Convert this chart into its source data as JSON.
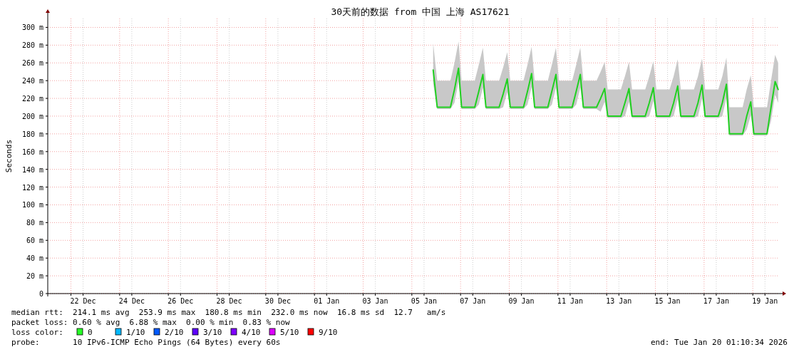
{
  "chart_data": {
    "type": "line",
    "title": "30天前的数据 from 中国 上海 AS17621",
    "ylabel": "Seconds",
    "xlim": [
      "2025-12-21T01:10",
      "2026-01-20T01:10"
    ],
    "xticks": [
      {
        "value": "2025-12-22T00:00",
        "label": null
      },
      {
        "value": "2025-12-22T12:00",
        "label": "22 Dec"
      },
      {
        "value": "2025-12-24T00:00",
        "label": null
      },
      {
        "value": "2025-12-24T12:00",
        "label": "24 Dec"
      },
      {
        "value": "2025-12-26T00:00",
        "label": null
      },
      {
        "value": "2025-12-26T12:00",
        "label": "26 Dec"
      },
      {
        "value": "2025-12-28T00:00",
        "label": null
      },
      {
        "value": "2025-12-28T12:00",
        "label": "28 Dec"
      },
      {
        "value": "2025-12-30T00:00",
        "label": null
      },
      {
        "value": "2025-12-30T12:00",
        "label": "30 Dec"
      },
      {
        "value": "2026-01-01T00:00",
        "label": null
      },
      {
        "value": "2026-01-01T12:00",
        "label": "01 Jan"
      },
      {
        "value": "2026-01-03T00:00",
        "label": null
      },
      {
        "value": "2026-01-03T12:00",
        "label": "03 Jan"
      },
      {
        "value": "2026-01-05T00:00",
        "label": null
      },
      {
        "value": "2026-01-05T12:00",
        "label": "05 Jan"
      },
      {
        "value": "2026-01-07T00:00",
        "label": null
      },
      {
        "value": "2026-01-07T12:00",
        "label": "07 Jan"
      },
      {
        "value": "2026-01-09T00:00",
        "label": null
      },
      {
        "value": "2026-01-09T12:00",
        "label": "09 Jan"
      },
      {
        "value": "2026-01-11T00:00",
        "label": null
      },
      {
        "value": "2026-01-11T12:00",
        "label": "11 Jan"
      },
      {
        "value": "2026-01-13T00:00",
        "label": null
      },
      {
        "value": "2026-01-13T12:00",
        "label": "13 Jan"
      },
      {
        "value": "2026-01-15T00:00",
        "label": null
      },
      {
        "value": "2026-01-15T12:00",
        "label": "15 Jan"
      },
      {
        "value": "2026-01-17T00:00",
        "label": null
      },
      {
        "value": "2026-01-17T12:00",
        "label": "17 Jan"
      },
      {
        "value": "2026-01-19T00:00",
        "label": null
      },
      {
        "value": "2026-01-19T12:00",
        "label": "19 Jan"
      }
    ],
    "ylim": [
      0,
      310
    ],
    "yticks": [
      0,
      {
        "value": 20,
        "label": "20 m"
      },
      {
        "value": 40,
        "label": "40 m"
      },
      {
        "value": 60,
        "label": "60 m"
      },
      {
        "value": 80,
        "label": "80 m"
      },
      {
        "value": 100,
        "label": "100 m"
      },
      {
        "value": 120,
        "label": "120 m"
      },
      {
        "value": 140,
        "label": "140 m"
      },
      {
        "value": 160,
        "label": "160 m"
      },
      {
        "value": 180,
        "label": "180 m"
      },
      {
        "value": 200,
        "label": "200 m"
      },
      {
        "value": 220,
        "label": "220 m"
      },
      {
        "value": 240,
        "label": "240 m"
      },
      {
        "value": 260,
        "label": "260 m"
      },
      {
        "value": 280,
        "label": "280 m"
      },
      {
        "value": 300,
        "label": "300 m"
      }
    ],
    "grid": true,
    "marker": "none",
    "line_style": "solid",
    "x": [
      "2026-01-05T21:00",
      "2026-01-06T01:00",
      "2026-01-06T14:00",
      "2026-01-06T18:00",
      "2026-01-06T22:00",
      "2026-01-07T01:00",
      "2026-01-07T14:00",
      "2026-01-07T18:00",
      "2026-01-07T22:00",
      "2026-01-08T01:00",
      "2026-01-08T14:00",
      "2026-01-08T18:00",
      "2026-01-08T22:00",
      "2026-01-09T01:00",
      "2026-01-09T14:00",
      "2026-01-09T18:00",
      "2026-01-09T22:00",
      "2026-01-10T01:00",
      "2026-01-10T14:00",
      "2026-01-10T18:00",
      "2026-01-10T22:00",
      "2026-01-11T01:00",
      "2026-01-11T14:00",
      "2026-01-11T18:00",
      "2026-01-11T22:00",
      "2026-01-12T01:00",
      "2026-01-12T14:00",
      "2026-01-12T18:00",
      "2026-01-12T22:00",
      "2026-01-13T01:00",
      "2026-01-13T14:00",
      "2026-01-13T18:00",
      "2026-01-13T22:00",
      "2026-01-14T01:00",
      "2026-01-14T14:00",
      "2026-01-14T18:00",
      "2026-01-14T22:00",
      "2026-01-15T01:00",
      "2026-01-15T14:00",
      "2026-01-15T18:00",
      "2026-01-15T22:00",
      "2026-01-16T01:00",
      "2026-01-16T14:00",
      "2026-01-16T18:00",
      "2026-01-16T22:00",
      "2026-01-17T01:00",
      "2026-01-17T14:00",
      "2026-01-17T18:00",
      "2026-01-17T22:00",
      "2026-01-18T01:00",
      "2026-01-18T14:00",
      "2026-01-18T18:00",
      "2026-01-18T22:00",
      "2026-01-19T01:00",
      "2026-01-19T14:00",
      "2026-01-19T18:00",
      "2026-01-19T22:00",
      "2026-01-20T01:00"
    ],
    "series": [
      {
        "color": "#20d020",
        "values": [
          252,
          210,
          210,
          230,
          254,
          210,
          210,
          228,
          247,
          210,
          210,
          225,
          242,
          210,
          210,
          228,
          248,
          210,
          210,
          228,
          247,
          210,
          210,
          228,
          247,
          210,
          210,
          220,
          231,
          200,
          200,
          215,
          231,
          200,
          200,
          215,
          232,
          200,
          200,
          215,
          234,
          200,
          200,
          215,
          235,
          200,
          200,
          215,
          236,
          180,
          180,
          200,
          216,
          180,
          180,
          210,
          239,
          230
        ],
        "lower": [
          237,
          208,
          208,
          215,
          239,
          208,
          208,
          213,
          232,
          208,
          208,
          210,
          227,
          208,
          208,
          213,
          233,
          208,
          208,
          213,
          232,
          208,
          208,
          213,
          232,
          208,
          208,
          205,
          216,
          198,
          198,
          200,
          216,
          198,
          198,
          200,
          217,
          198,
          198,
          200,
          219,
          198,
          198,
          200,
          220,
          198,
          198,
          200,
          221,
          178,
          178,
          185,
          201,
          178,
          178,
          195,
          224,
          215
        ],
        "upper": [
          282,
          240,
          240,
          260,
          284,
          240,
          240,
          258,
          277,
          240,
          240,
          255,
          272,
          240,
          240,
          258,
          278,
          240,
          240,
          258,
          277,
          240,
          240,
          258,
          277,
          240,
          240,
          250,
          261,
          230,
          230,
          245,
          261,
          230,
          230,
          245,
          262,
          230,
          230,
          245,
          264,
          230,
          230,
          245,
          265,
          230,
          230,
          245,
          266,
          210,
          210,
          230,
          246,
          210,
          210,
          240,
          269,
          260
        ]
      }
    ],
    "annotations": [
      "median rtt:  214.1 ms avg  253.9 ms max  180.8 ms min  232.0 ms now  16.8 ms sd  12.7   am/s",
      "packet loss: 0.60 % avg  6.88 % max  0.00 % min  0.83 % now",
      "loss color:",
      "0",
      "1/10",
      "2/10",
      "3/10",
      "4/10",
      "5/10",
      "9/10",
      "probe:       10 IPv6-ICMP Echo Pings (64 Bytes) every 60s",
      "end: Tue Jan 20 01:10:34 2026"
    ]
  }
}
